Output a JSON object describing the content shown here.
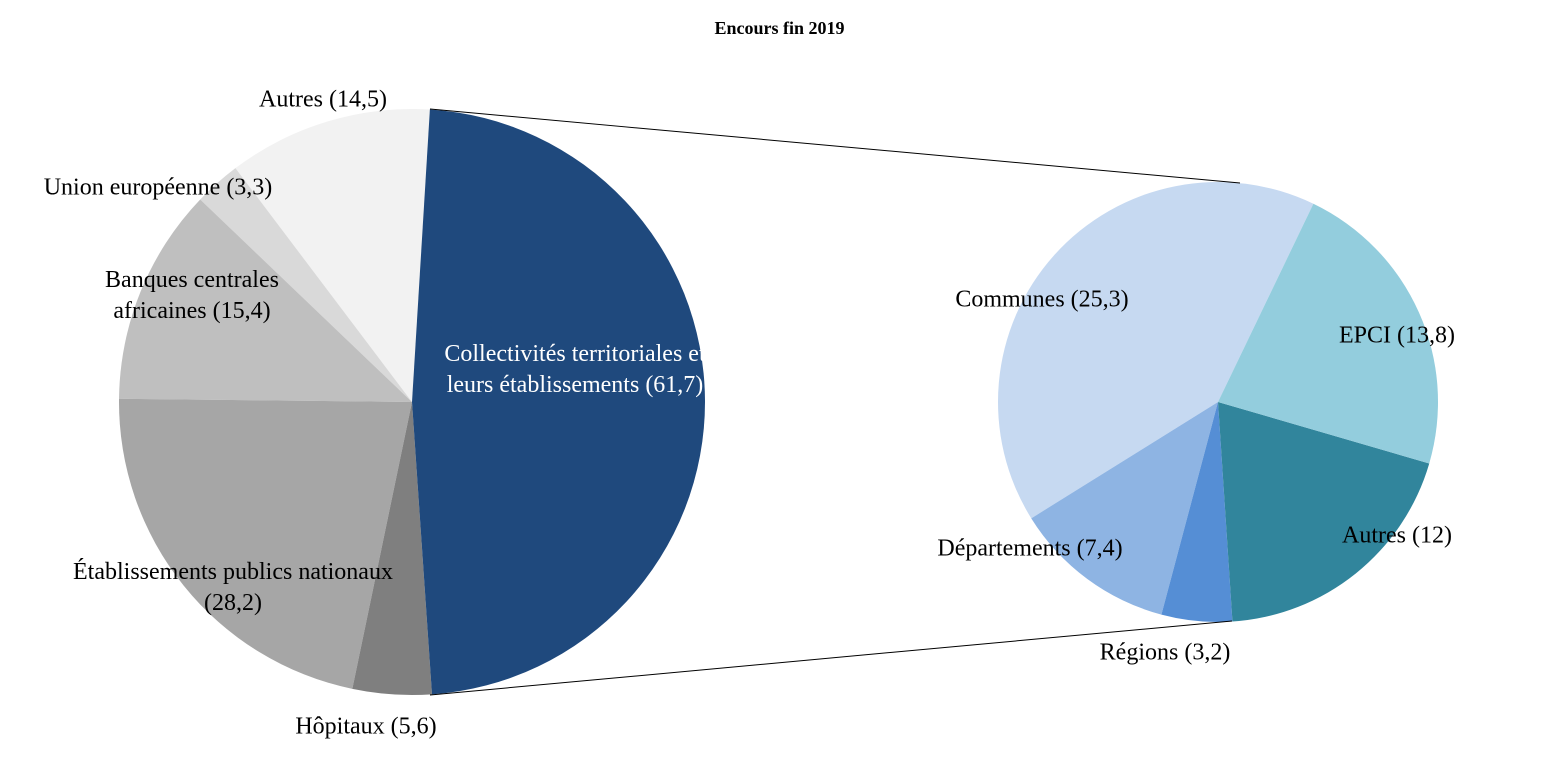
{
  "chart_data": [
    {
      "type": "pie",
      "title": "Encours fin 2019",
      "categories": [
        "Collectivités territoriales et leurs établissements",
        "Hôpitaux",
        "Établissements publics nationaux",
        "Banques centrales africaines",
        "Union européenne",
        "Autres"
      ],
      "values": [
        61.7,
        5.6,
        28.2,
        15.4,
        3.3,
        14.5
      ],
      "value_labels": [
        "(61,7)",
        "(5,6)",
        "(28,2)",
        "(15,4)",
        "(3,3)",
        "(14,5)"
      ],
      "colors": [
        "#1f497d",
        "#7f7f7f",
        "#a6a6a6",
        "#bfbfbf",
        "#d9d9d9",
        "#f2f2f2"
      ]
    },
    {
      "type": "pie",
      "categories": [
        "EPCI",
        "Autres",
        "Régions",
        "Départements",
        "Communes"
      ],
      "values": [
        13.8,
        12,
        3.2,
        7.4,
        25.3
      ],
      "value_labels": [
        "(13,8)",
        "(12)",
        "(3,2)",
        "(7,4)",
        "(25,3)"
      ],
      "colors": [
        "#93cddd",
        "#31859c",
        "#558ed5",
        "#8eb4e3",
        "#c6d9f1"
      ]
    }
  ]
}
